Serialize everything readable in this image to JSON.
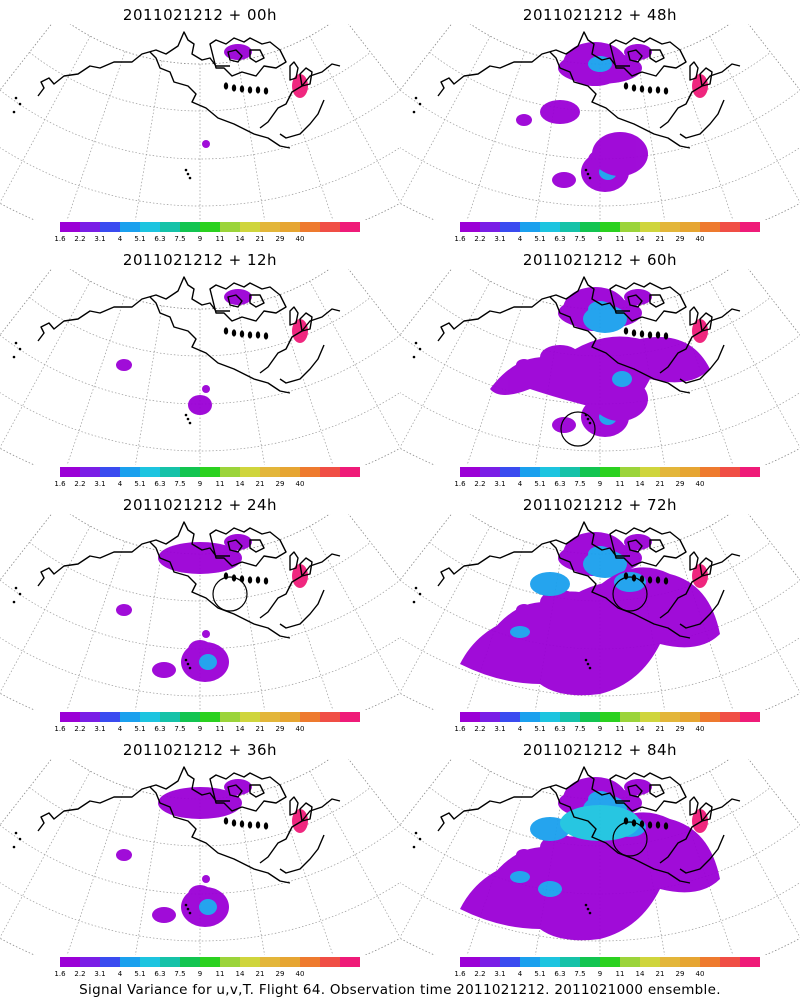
{
  "colorbar": {
    "labels": [
      "1.6",
      "2.2",
      "3.1",
      "4",
      "5.1",
      "6.3",
      "7.5",
      "9",
      "11",
      "14",
      "21",
      "29",
      "40"
    ],
    "colors": [
      "#9b00d6",
      "#7a1ee6",
      "#3a4bf0",
      "#1aa0ee",
      "#1cc4e0",
      "#15c2a8",
      "#12c450",
      "#2ad11f",
      "#9bd43a",
      "#cfd53c",
      "#e3b63a",
      "#e6a532",
      "#ee7a2e",
      "#f04e45",
      "#ef1b78"
    ]
  },
  "panels": [
    {
      "id": "p00",
      "title": "2011021212 + 00h",
      "col": 0,
      "row": 0,
      "level": 0,
      "circle": false
    },
    {
      "id": "p48",
      "title": "2011021212 + 48h",
      "col": 1,
      "row": 0,
      "level": 3,
      "circle": false
    },
    {
      "id": "p12",
      "title": "2011021212 + 12h",
      "col": 0,
      "row": 1,
      "level": 1,
      "circle": false
    },
    {
      "id": "p60",
      "title": "2011021212 + 60h",
      "col": 1,
      "row": 1,
      "level": 4,
      "circle": true,
      "circleAt": "hawaii"
    },
    {
      "id": "p24",
      "title": "2011021212 + 24h",
      "col": 0,
      "row": 2,
      "level": 2,
      "circle": true,
      "circleAt": "coast"
    },
    {
      "id": "p72",
      "title": "2011021212 + 72h",
      "col": 1,
      "row": 2,
      "level": 5,
      "circle": true,
      "circleAt": "coast"
    },
    {
      "id": "p36",
      "title": "2011021212 + 36h",
      "col": 0,
      "row": 3,
      "level": 2,
      "circle": false
    },
    {
      "id": "p84",
      "title": "2011021212 + 84h",
      "col": 1,
      "row": 3,
      "level": 6,
      "circle": true,
      "circleAt": "coast"
    }
  ],
  "caption": "Signal Variance for u,v,T. Flight 64. Observation time 2011021212. 2011021000 ensemble."
}
